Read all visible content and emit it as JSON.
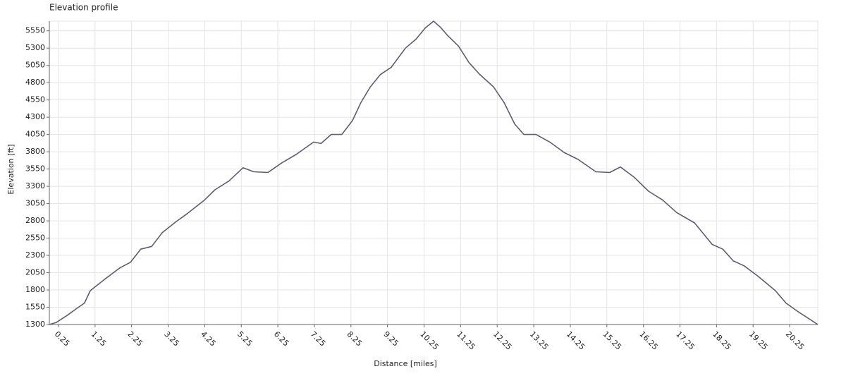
{
  "chart_data": {
    "type": "line",
    "title": "Elevation profile",
    "x_label": "Distance [miles]",
    "y_label": "Elevation [ft]",
    "x": [
      0,
      0.19,
      0.48,
      0.77,
      0.96,
      1.12,
      1.54,
      1.93,
      2.22,
      2.5,
      2.8,
      3.09,
      3.47,
      3.76,
      4.24,
      4.53,
      4.92,
      5.3,
      5.59,
      5.98,
      6.36,
      6.75,
      7.23,
      7.43,
      7.71,
      8.0,
      8.29,
      8.52,
      8.78,
      9.06,
      9.35,
      9.74,
      10.03,
      10.28,
      10.51,
      10.7,
      10.9,
      11.19,
      11.48,
      11.77,
      12.15,
      12.44,
      12.73,
      12.98,
      13.31,
      13.69,
      14.08,
      14.46,
      14.95,
      15.33,
      15.62,
      16.0,
      16.39,
      16.78,
      17.16,
      17.65,
      18.13,
      18.42,
      18.71,
      19.0,
      19.38,
      19.86,
      20.15,
      20.44,
      20.73,
      21.02
    ],
    "series": [
      {
        "name": "Elevation",
        "color": "#5e5c72",
        "values": [
          1300,
          1330,
          1430,
          1540,
          1610,
          1790,
          1966,
          2120,
          2200,
          2390,
          2430,
          2630,
          2790,
          2900,
          3100,
          3250,
          3380,
          3570,
          3510,
          3500,
          3640,
          3760,
          3940,
          3920,
          4050,
          4050,
          4250,
          4510,
          4740,
          4920,
          5020,
          5300,
          5430,
          5590,
          5690,
          5600,
          5480,
          5330,
          5090,
          4920,
          4740,
          4510,
          4200,
          4050,
          4050,
          3940,
          3790,
          3690,
          3510,
          3500,
          3580,
          3430,
          3230,
          3100,
          2920,
          2770,
          2460,
          2390,
          2220,
          2150,
          2000,
          1790,
          1610,
          1500,
          1400,
          1300
        ]
      }
    ],
    "xlim": [
      0,
      21.02
    ],
    "ylim": [
      1300,
      5690
    ],
    "xticks": [
      0.25,
      1.25,
      2.25,
      3.25,
      4.25,
      5.25,
      6.25,
      7.25,
      8.25,
      9.25,
      10.25,
      11.25,
      12.25,
      13.25,
      14.25,
      15.25,
      16.25,
      17.25,
      18.25,
      19.25,
      20.25
    ],
    "yticks": [
      1300,
      1550,
      1800,
      2050,
      2300,
      2550,
      2800,
      3050,
      3300,
      3550,
      3800,
      4050,
      4300,
      4550,
      4800,
      5050,
      5300,
      5550
    ],
    "grid": true
  }
}
